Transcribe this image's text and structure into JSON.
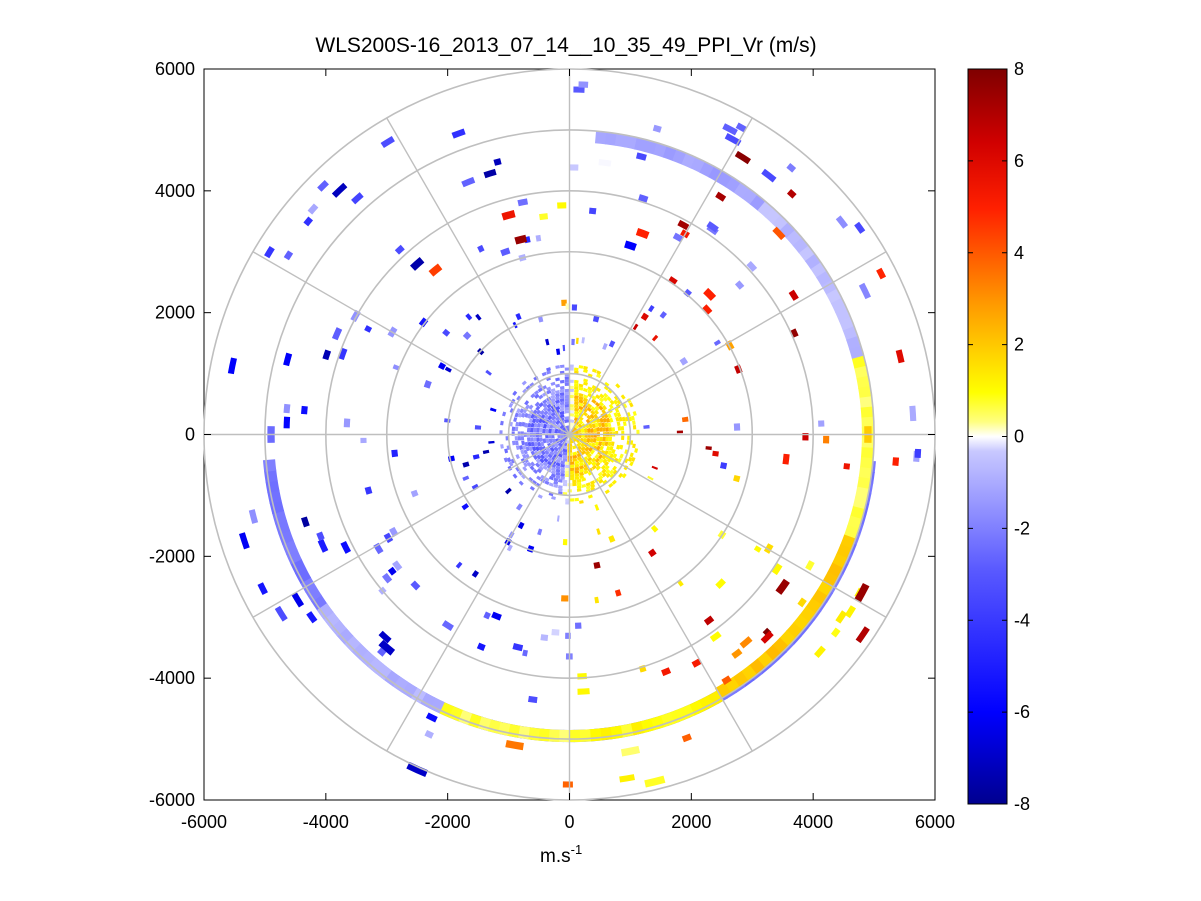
{
  "chart_data": {
    "type": "heatmap",
    "subtype": "polar-ppi",
    "title": "WLS200S-16_2013_07_14__10_35_49_PPI_Vr (m/s)",
    "xlabel_base": "m.s",
    "xlabel_sup": "-1",
    "ylabel": "",
    "xlim": [
      -6000,
      6000
    ],
    "ylim": [
      -6000,
      6000
    ],
    "x_ticks": [
      "-6000",
      "-4000",
      "-2000",
      "0",
      "2000",
      "4000",
      "6000"
    ],
    "y_ticks": [
      "6000",
      "4000",
      "2000",
      "0",
      "-2000",
      "-4000",
      "-6000"
    ],
    "x_tick_values": [
      -6000,
      -4000,
      -2000,
      0,
      2000,
      4000,
      6000
    ],
    "y_tick_values": [
      6000,
      4000,
      2000,
      0,
      -2000,
      -4000,
      -6000
    ],
    "polar_grid": {
      "ring_radii": [
        1000,
        2000,
        3000,
        4000,
        5000,
        6000
      ],
      "spoke_angles_deg": [
        0,
        30,
        60,
        90,
        120,
        150,
        180,
        210,
        240,
        270,
        300,
        330
      ]
    },
    "colorbar": {
      "range": [
        -8,
        8
      ],
      "ticks": [
        "8",
        "6",
        "4",
        "2",
        "0",
        "-2",
        "-4",
        "-6",
        "-8"
      ],
      "tick_values": [
        8,
        6,
        4,
        2,
        0,
        -2,
        -4,
        -6,
        -8
      ],
      "colors": [
        "#00008f",
        "#0000ff",
        "#7070ff",
        "#ffffff",
        "#ffff00",
        "#ff8000",
        "#ff0000",
        "#7f0000"
      ]
    },
    "rings": [
      {
        "r_inner": 4850,
        "r_outer": 5050,
        "from_deg": 95,
        "to_deg": 265,
        "value": -2.2
      },
      {
        "r_inner": 4800,
        "r_outer": 5000,
        "from_deg": 5,
        "to_deg": 40,
        "value": -1.2
      },
      {
        "r_inner": 4800,
        "r_outer": 5000,
        "from_deg": 40,
        "to_deg": 75,
        "value": -0.6
      },
      {
        "r_inner": 4800,
        "r_outer": 5000,
        "from_deg": 75,
        "to_deg": 110,
        "value": 0.6
      },
      {
        "r_inner": 4800,
        "r_outer": 5000,
        "from_deg": 110,
        "to_deg": 150,
        "value": 2.0
      },
      {
        "r_inner": 4850,
        "r_outer": 5050,
        "from_deg": 150,
        "to_deg": 180,
        "value": 1.0
      },
      {
        "r_inner": 4850,
        "r_outer": 5050,
        "from_deg": 180,
        "to_deg": 205,
        "value": 0.6
      },
      {
        "r_inner": 4850,
        "r_outer": 5050,
        "from_deg": 205,
        "to_deg": 235,
        "value": -0.8
      }
    ],
    "sample_cells": [
      {
        "x": -2500,
        "y": 2800,
        "value": -7.5
      },
      {
        "x": -2200,
        "y": 2700,
        "value": 4.5
      },
      {
        "x": -1000,
        "y": 3600,
        "value": 5.5
      },
      {
        "x": -800,
        "y": 3200,
        "value": 7.5
      },
      {
        "x": 1200,
        "y": 3300,
        "value": 5.0
      },
      {
        "x": 1000,
        "y": 3100,
        "value": -6.0
      },
      {
        "x": 2300,
        "y": 2300,
        "value": 5.0
      },
      {
        "x": 3500,
        "y": -2500,
        "value": 7.5
      },
      {
        "x": 4800,
        "y": -2600,
        "value": 7.5
      },
      {
        "x": -900,
        "y": -5100,
        "value": 3.5
      },
      {
        "x": -3000,
        "y": -3500,
        "value": -7.0
      },
      {
        "x": -2500,
        "y": -5500,
        "value": -7.0
      },
      {
        "x": 1000,
        "y": -5200,
        "value": 0.4
      },
      {
        "x": 1400,
        "y": -5700,
        "value": 0.8
      },
      {
        "x": 4900,
        "y": 0,
        "value": 2.0
      },
      {
        "x": -4900,
        "y": 0,
        "value": -2.5
      }
    ]
  }
}
